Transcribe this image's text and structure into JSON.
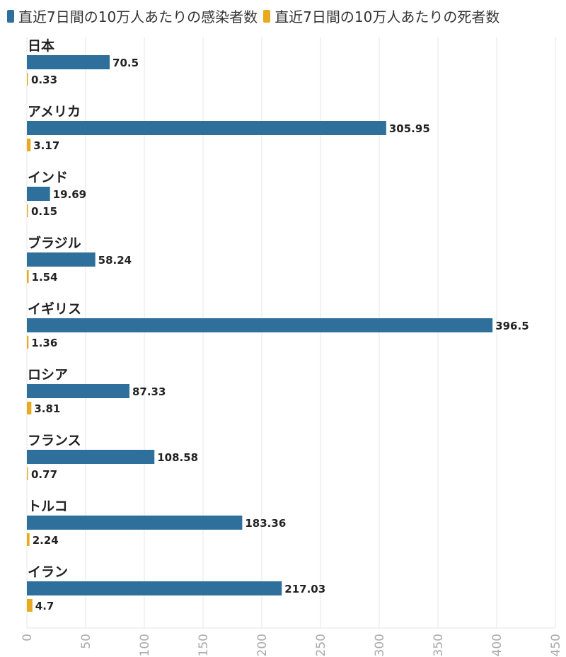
{
  "chart_data": {
    "type": "bar",
    "orientation": "horizontal",
    "categories": [
      "日本",
      "アメリカ",
      "インド",
      "ブラジル",
      "イギリス",
      "ロシア",
      "フランス",
      "トルコ",
      "イラン"
    ],
    "series": [
      {
        "name": "直近7日間の10万人あたりの感染者数",
        "color": "#2e6f9b",
        "values": [
          70.5,
          305.95,
          19.69,
          58.24,
          396.5,
          87.33,
          108.58,
          183.36,
          217.03
        ],
        "labels": [
          "70.5",
          "305.95",
          "19.69",
          "58.24",
          "396.5",
          "87.33",
          "108.58",
          "183.36",
          "217.03"
        ]
      },
      {
        "name": "直近7日間の10万人あたりの死者数",
        "color": "#e8ab1e",
        "values": [
          0.33,
          3.17,
          0.15,
          1.54,
          1.36,
          3.81,
          0.77,
          2.24,
          4.7
        ],
        "labels": [
          "0.33",
          "3.17",
          "0.15",
          "1.54",
          "1.36",
          "3.81",
          "0.77",
          "2.24",
          "4.7"
        ]
      }
    ],
    "xlim": [
      0,
      450
    ],
    "xticks": [
      "0",
      "50",
      "100",
      "150",
      "200",
      "250",
      "300",
      "350",
      "400",
      "450"
    ],
    "grid": true,
    "legend": "top-left",
    "title": "",
    "xlabel": "",
    "ylabel": ""
  }
}
